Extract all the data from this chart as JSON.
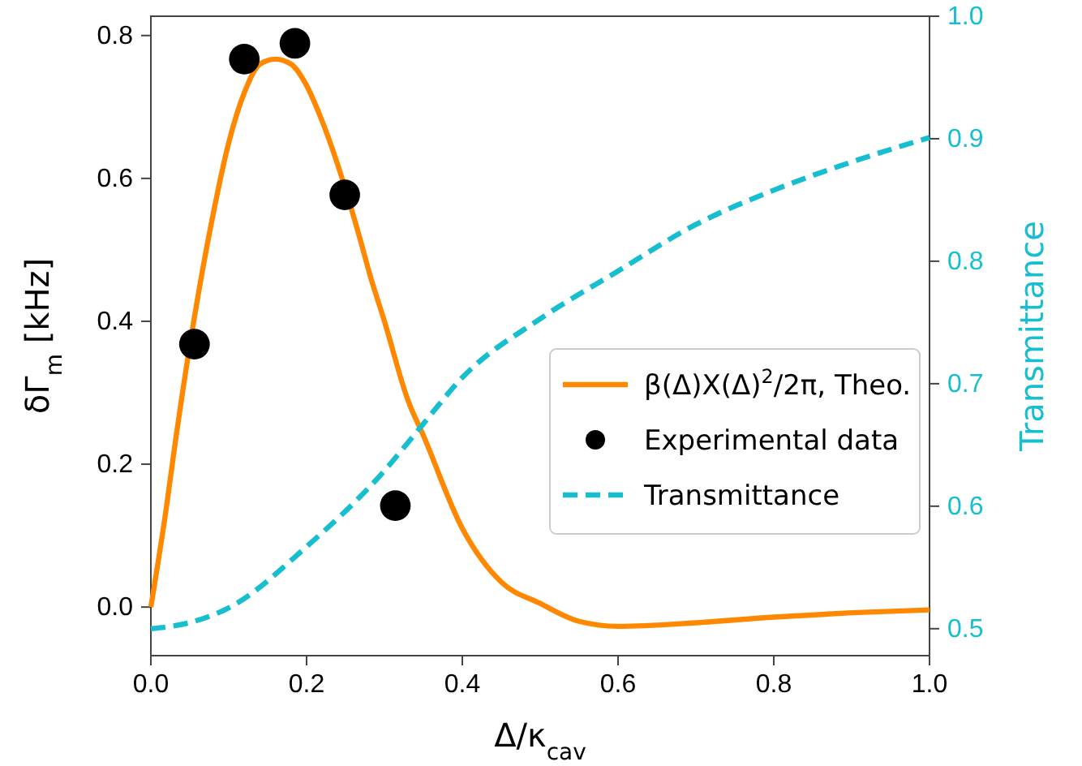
{
  "chart_data": {
    "type": "line",
    "xlabel": "Δ/κ$_{cav}$",
    "ylabel": "δΓ$_{m}$ [kHz]",
    "y2label": "Transmittance",
    "xlim": [
      0,
      1
    ],
    "xticks": [
      {
        "value": 0,
        "label": "0.0"
      },
      0.2,
      0.4,
      0.6,
      0.8,
      {
        "value": 1,
        "label": "1.0"
      }
    ],
    "ylim": [
      -0.068,
      0.827
    ],
    "yticks": [
      {
        "value": 0,
        "label": "0.0"
      },
      0.2,
      0.4,
      0.6,
      0.8
    ],
    "y2lim": [
      0.478,
      1.0
    ],
    "y2ticks": [
      0.5,
      0.6,
      0.7,
      0.8,
      0.9,
      {
        "value": 1,
        "label": "1.0"
      }
    ],
    "legend": "right",
    "grid": false,
    "series": [
      {
        "name": "β(Δ)X(Δ)$^{2}$/2π, Theo.",
        "color": "#ff8800",
        "line_style": "solid",
        "marker": "none",
        "x": [
          0,
          0.02,
          0.03,
          0.08,
          0.1,
          0.12,
          0.14,
          0.16,
          0.18,
          0.2,
          0.22,
          0.27,
          0.28,
          0.3,
          0.33,
          0.35,
          0.4,
          0.45,
          0.5,
          0.55,
          0.6,
          0.7,
          0.8,
          0.9,
          1.0
        ],
        "values": [
          0,
          0.14,
          0.22,
          0.55,
          0.65,
          0.72,
          0.76,
          0.767,
          0.76,
          0.73,
          0.68,
          0.51,
          0.47,
          0.4,
          0.29,
          0.24,
          0.11,
          0.035,
          0.005,
          -0.02,
          -0.027,
          -0.022,
          -0.014,
          -0.008,
          -0.004
        ]
      },
      {
        "name": "Experimental data",
        "type": "scatter",
        "color": "#000000",
        "marker": "circle",
        "x": [
          0.056,
          0.12,
          0.185,
          0.249,
          0.314
        ],
        "values": [
          0.368,
          0.767,
          0.789,
          0.577,
          0.142
        ]
      },
      {
        "name": "Transmittance",
        "type": "line",
        "axis": "y2",
        "color": "#17becf",
        "line_style": "dashed",
        "marker": "none",
        "x": [
          0,
          0.05,
          0.1,
          0.2,
          0.3,
          0.347,
          0.4,
          0.5,
          0.6,
          0.7,
          0.8,
          0.9,
          1.0
        ],
        "values": [
          0.5,
          0.505,
          0.517,
          0.567,
          0.629,
          0.665,
          0.705,
          0.753,
          0.792,
          0.83,
          0.858,
          0.881,
          0.901
        ]
      }
    ]
  }
}
